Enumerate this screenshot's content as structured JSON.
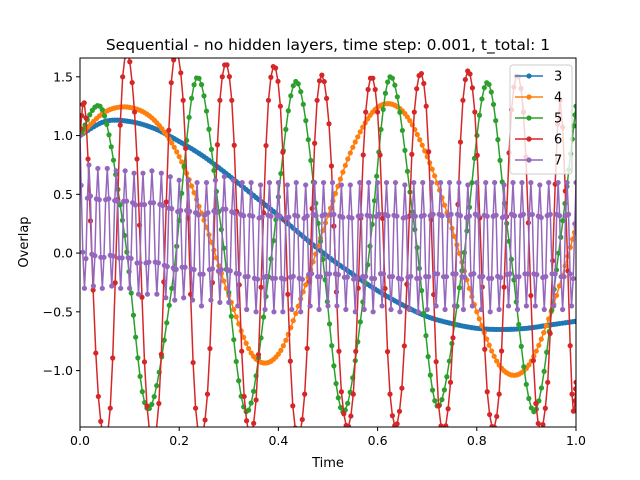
{
  "chart_data": {
    "type": "line",
    "title": "Sequential - no hidden layers, time step: 0.001, t_total: 1",
    "xlabel": "Time",
    "ylabel": "Overlap",
    "xlim": [
      0,
      1
    ],
    "ylim": [
      -1.48,
      1.66
    ],
    "xticks": [
      0,
      0.2,
      0.4,
      0.6,
      0.8,
      1
    ],
    "xtick_labels": [
      "0.0",
      "0.2",
      "0.4",
      "0.6",
      "0.8",
      "1.0"
    ],
    "yticks": [
      -1.0,
      -0.5,
      0.0,
      0.5,
      1.0,
      1.5
    ],
    "ytick_labels": [
      "−1.0",
      "−0.5",
      "0.0",
      "0.5",
      "1.0",
      "1.5"
    ],
    "grid": false,
    "legend_position": "upper right",
    "series": [
      {
        "name": "3",
        "color": "#1f77b4",
        "x": [
          0,
          0.05,
          0.1,
          0.15,
          0.2,
          0.25,
          0.3,
          0.35,
          0.4,
          0.45,
          0.5,
          0.55,
          0.6,
          0.65,
          0.7,
          0.75,
          0.8,
          0.85,
          0.9,
          0.95,
          1.0
        ],
        "y": [
          1.0,
          1.12,
          1.12,
          1.06,
          0.95,
          0.82,
          0.66,
          0.49,
          0.32,
          0.14,
          -0.03,
          -0.18,
          -0.32,
          -0.44,
          -0.54,
          -0.6,
          -0.64,
          -0.65,
          -0.64,
          -0.61,
          -0.58
        ]
      },
      {
        "name": "4",
        "color": "#ff7f0e",
        "x": [
          0,
          0.05,
          0.1,
          0.15,
          0.2,
          0.25,
          0.3,
          0.35,
          0.4,
          0.45,
          0.5,
          0.55,
          0.6,
          0.65,
          0.7,
          0.75,
          0.8,
          0.85,
          0.9,
          0.95,
          1.0
        ],
        "y": [
          1.0,
          1.2,
          1.24,
          1.13,
          0.82,
          0.28,
          -0.36,
          -0.88,
          -0.86,
          -0.33,
          0.32,
          0.9,
          1.24,
          1.21,
          0.82,
          0.21,
          -0.5,
          -0.98,
          -0.98,
          -0.5,
          0.22
        ]
      },
      {
        "name": "5",
        "color": "#2ca02c",
        "x": [
          0,
          0.045,
          0.09,
          0.135,
          0.185,
          0.235,
          0.285,
          0.335,
          0.385,
          0.435,
          0.485,
          0.53,
          0.58,
          0.625,
          0.675,
          0.72,
          0.77,
          0.82,
          0.865,
          0.915,
          0.965,
          1.0
        ],
        "y": [
          1.0,
          1.22,
          0.15,
          -1.32,
          -0.3,
          1.49,
          0.2,
          -1.35,
          -0.05,
          1.46,
          0.1,
          -1.35,
          -0.1,
          1.5,
          0.2,
          -1.3,
          -0.15,
          1.45,
          0.1,
          -1.35,
          0.0,
          1.25
        ]
      },
      {
        "name": "6",
        "color": "#d62728",
        "x": [
          0,
          0.012,
          0.037,
          0.061,
          0.086,
          0.11,
          0.135,
          0.159,
          0.184,
          0.208,
          0.233,
          0.257,
          0.282,
          0.306,
          0.331,
          0.355,
          0.38,
          0.404,
          0.429,
          0.453,
          0.478,
          0.502,
          0.527,
          0.551,
          0.576,
          0.6,
          0.625,
          0.649,
          0.674,
          0.698,
          0.723,
          0.747,
          0.772,
          0.796,
          0.821,
          0.845,
          0.87,
          0.894,
          0.919,
          0.943,
          0.968,
          0.992,
          1.0
        ],
        "y": [
          1.0,
          1.15,
          -1.22,
          -1.32,
          1.5,
          1.2,
          -1.3,
          -1.28,
          1.45,
          1.3,
          -1.32,
          -1.2,
          1.3,
          1.3,
          -1.22,
          -1.25,
          1.3,
          1.25,
          -1.3,
          -1.2,
          1.3,
          1.1,
          -1.18,
          -1.2,
          1.2,
          1.2,
          -1.2,
          -1.15,
          1.2,
          1.25,
          -1.3,
          -1.1,
          1.3,
          1.2,
          -1.18,
          -1.2,
          1.22,
          1.2,
          -1.28,
          -1.1,
          1.3,
          -1.2,
          -1.1
        ]
      },
      {
        "name": "7",
        "color": "#9467bd",
        "x": [
          0,
          0.009,
          0.018,
          0.027,
          0.036,
          0.045,
          0.055,
          0.064,
          0.073,
          0.082,
          0.091,
          0.1,
          0.109,
          0.118,
          0.127,
          0.136,
          0.145,
          0.155,
          0.164,
          0.173,
          0.182,
          0.191,
          0.2,
          0.209,
          0.218,
          0.227,
          0.236,
          0.245,
          0.255,
          0.264,
          0.273,
          0.282,
          0.291,
          0.3,
          0.309,
          0.318,
          0.327,
          0.336,
          0.345,
          0.355,
          0.364,
          0.373,
          0.382,
          0.391,
          0.4,
          0.409,
          0.418,
          0.427,
          0.436,
          0.445,
          0.455,
          0.464,
          0.473,
          0.482,
          0.491,
          0.5,
          0.509,
          0.518,
          0.527,
          0.536,
          0.545,
          0.555,
          0.564,
          0.573,
          0.582,
          0.591,
          0.6,
          0.609,
          0.618,
          0.627,
          0.636,
          0.645,
          0.655,
          0.664,
          0.673,
          0.682,
          0.691,
          0.7,
          0.709,
          0.718,
          0.727,
          0.736,
          0.745,
          0.755,
          0.764,
          0.773,
          0.782,
          0.791,
          0.8,
          0.809,
          0.818,
          0.827,
          0.836,
          0.845,
          0.855,
          0.864,
          0.873,
          0.882,
          0.891,
          0.9,
          0.909,
          0.918,
          0.927,
          0.936,
          0.945,
          0.955,
          0.964,
          0.973,
          0.982,
          0.991,
          1.0
        ],
        "y": [
          1.0,
          -0.3,
          0.75,
          -0.28,
          0.72,
          -0.3,
          0.72,
          -0.28,
          0.7,
          -0.3,
          0.7,
          -0.3,
          0.68,
          -0.35,
          0.68,
          -0.35,
          0.7,
          -0.35,
          0.68,
          -0.38,
          0.65,
          -0.4,
          0.62,
          -0.38,
          0.62,
          -0.4,
          0.6,
          -0.45,
          0.6,
          -0.4,
          0.62,
          -0.42,
          0.65,
          -0.42,
          0.62,
          -0.45,
          0.6,
          -0.48,
          0.6,
          -0.5,
          0.58,
          -0.48,
          0.6,
          -0.5,
          0.6,
          -0.5,
          0.58,
          -0.48,
          0.6,
          -0.5,
          0.58,
          -0.45,
          0.6,
          -0.48,
          0.6,
          -0.45,
          0.6,
          -0.45,
          0.58,
          -0.48,
          0.58,
          -0.5,
          0.6,
          -0.48,
          0.6,
          -0.5,
          0.6,
          -0.45,
          0.6,
          -0.48,
          0.6,
          -0.5,
          0.58,
          -0.48,
          0.6,
          -0.5,
          0.6,
          -0.48,
          0.6,
          -0.45,
          0.6,
          -0.48,
          0.6,
          -0.45,
          0.6,
          -0.48,
          0.58,
          -0.45,
          0.6,
          -0.48,
          0.6,
          -0.5,
          0.6,
          -0.48,
          0.58,
          -0.45,
          0.6,
          -0.48,
          0.6,
          -0.45,
          0.6,
          -0.45,
          0.58,
          -0.48,
          0.6,
          -0.45,
          0.6,
          -0.48,
          0.6,
          -0.45,
          0.6
        ]
      }
    ]
  }
}
